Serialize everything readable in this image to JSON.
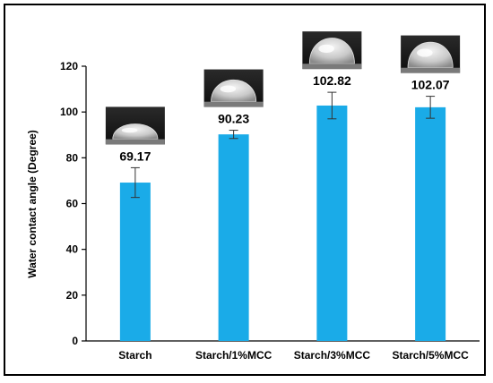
{
  "chart_data": {
    "type": "bar",
    "categories": [
      "Starch",
      "Starch/1%MCC",
      "Starch/3%MCC",
      "Starch/5%MCC"
    ],
    "values": [
      69.17,
      90.23,
      102.82,
      102.07
    ],
    "value_labels": [
      "69.17",
      "90.23",
      "102.82",
      "102.07"
    ],
    "error": [
      6.5,
      1.8,
      5.8,
      4.8
    ],
    "title": "",
    "xlabel": "",
    "ylabel": "Water contact angle (Degree)",
    "ylim": [
      0,
      120
    ],
    "yticks": [
      0,
      20,
      40,
      60,
      80,
      100,
      120
    ],
    "ytick_labels": [
      "0",
      "20",
      "40",
      "60",
      "80",
      "100",
      "120"
    ],
    "grid": false,
    "bar_color": "#1aabe8",
    "droplet_images": [
      "water-droplet-photo",
      "water-droplet-photo",
      "water-droplet-photo",
      "water-droplet-photo"
    ]
  }
}
